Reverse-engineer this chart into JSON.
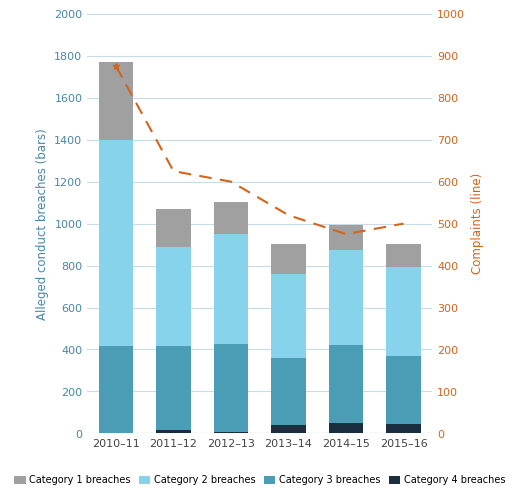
{
  "categories": [
    "2010–11",
    "2011–12",
    "2012–13",
    "2013–14",
    "2014–15",
    "2015–16"
  ],
  "cat4": [
    0,
    15,
    5,
    40,
    50,
    45
  ],
  "cat3": [
    415,
    400,
    420,
    320,
    370,
    325
  ],
  "cat2": [
    985,
    475,
    525,
    400,
    455,
    425
  ],
  "cat1": [
    370,
    180,
    155,
    145,
    120,
    110
  ],
  "complaints": [
    875,
    625,
    600,
    520,
    475,
    500
  ],
  "bar_colors": {
    "cat1": "#a0a0a0",
    "cat2": "#87d3ec",
    "cat3": "#4a9db5",
    "cat4": "#1a2e40"
  },
  "complaint_color": "#d4641a",
  "ylabel_left": "Alleged conduct breaches (bars)",
  "ylabel_right": "Complaints (line)",
  "ylim_left": [
    0,
    2000
  ],
  "ylim_right": [
    0,
    1000
  ],
  "yticks_left": [
    0,
    200,
    400,
    600,
    800,
    1000,
    1200,
    1400,
    1600,
    1800,
    2000
  ],
  "yticks_right": [
    0,
    100,
    200,
    300,
    400,
    500,
    600,
    700,
    800,
    900,
    1000
  ],
  "legend_labels": [
    "Category 1 breaches",
    "Category 2 breaches",
    "Category 3 breaches",
    "Category 4 breaches"
  ],
  "left_axis_color": "#4a86a8",
  "right_axis_color": "#d4641a",
  "grid_color": "#c8dce8",
  "bar_width": 0.6
}
